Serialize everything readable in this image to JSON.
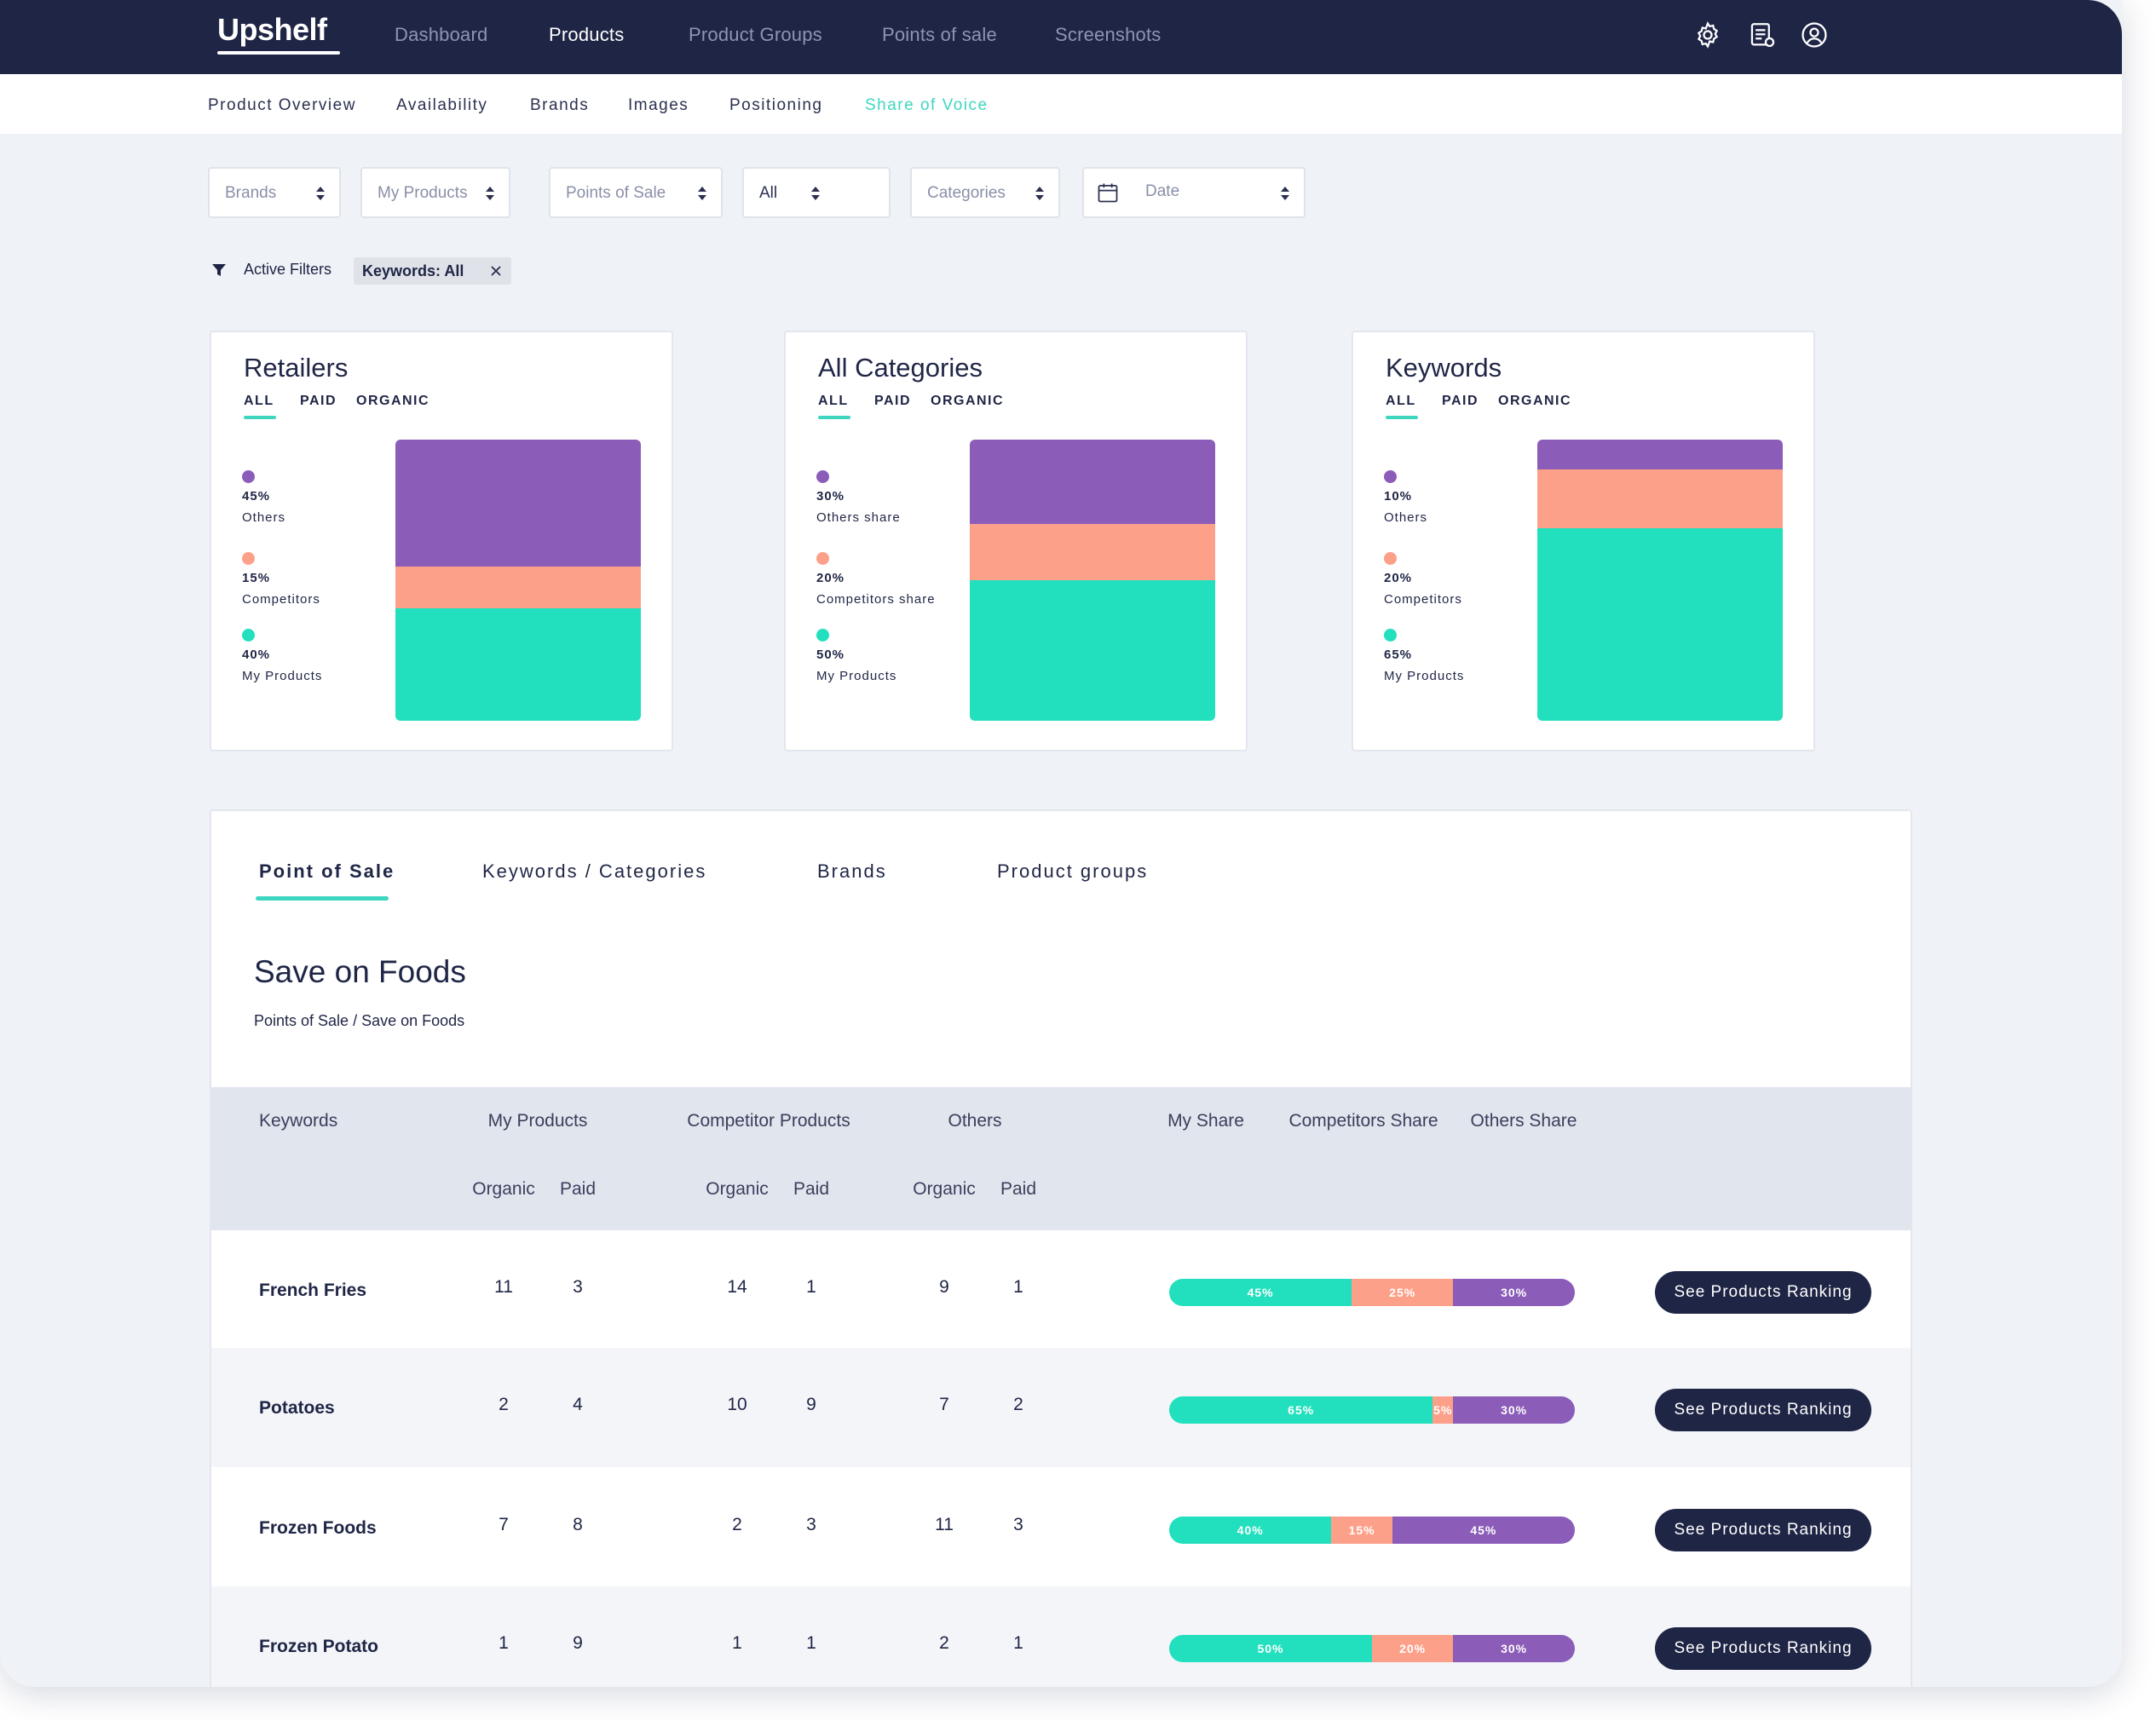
{
  "colors": {
    "navy": "#1f2545",
    "accent": "#3fd6c0",
    "others": "#8b5cb8",
    "competitors": "#fda08a",
    "my_products": "#22e0bd"
  },
  "topnav": {
    "logo": "Upshelf",
    "items": [
      "Dashboard",
      "Products",
      "Product Groups",
      "Points of sale",
      "Screenshots"
    ],
    "active": "Products",
    "icons": [
      "settings-icon",
      "report-icon",
      "account-icon"
    ]
  },
  "subnav": {
    "items": [
      "Product Overview",
      "Availability",
      "Brands",
      "Images",
      "Positioning",
      "Share of Voice"
    ],
    "active": "Share of Voice"
  },
  "filters": {
    "brands": "Brands",
    "my_products": "My Products",
    "points_of_sale": "Points of Sale",
    "all": "All",
    "categories": "Categories",
    "date": "Date"
  },
  "active_filters": {
    "label": "Active Filters",
    "chip": "Keywords: All"
  },
  "cards": [
    {
      "title": "Retailers",
      "tabs": [
        "ALL",
        "PAID",
        "ORGANIC"
      ],
      "legend": [
        {
          "value": "45%",
          "name": "Others",
          "pct": 45
        },
        {
          "value": "15%",
          "name": "Competitors",
          "pct": 15
        },
        {
          "value": "40%",
          "name": "My Products",
          "pct": 40
        }
      ]
    },
    {
      "title": "All Categories",
      "tabs": [
        "ALL",
        "PAID",
        "ORGANIC"
      ],
      "legend": [
        {
          "value": "30%",
          "name": "Others share",
          "pct": 30
        },
        {
          "value": "20%",
          "name": "Competitors share",
          "pct": 20
        },
        {
          "value": "50%",
          "name": "My Products",
          "pct": 50
        }
      ]
    },
    {
      "title": "Keywords",
      "tabs": [
        "ALL",
        "PAID",
        "ORGANIC"
      ],
      "legend": [
        {
          "value": "10%",
          "name": "Others",
          "pct": 10
        },
        {
          "value": "20%",
          "name": "Competitors",
          "pct": 20
        },
        {
          "value": "65%",
          "name": "My Products",
          "pct": 65
        }
      ]
    }
  ],
  "panel": {
    "tabs": [
      "Point of Sale",
      "Keywords / Categories",
      "Brands",
      "Product groups"
    ],
    "active_tab": "Point of Sale",
    "title": "Save on Foods",
    "breadcrumb": "Points of Sale / Save on Foods",
    "headers": {
      "keywords": "Keywords",
      "my_products": "My Products",
      "competitor_products": "Competitor Products",
      "others": "Others",
      "my_share": "My Share",
      "competitors_share": "Competitors Share",
      "others_share": "Others Share",
      "organic": "Organic",
      "paid": "Paid"
    },
    "button_label": "See Products Ranking",
    "rows": [
      {
        "keyword": "French Fries",
        "my_organic": "11",
        "my_paid": "3",
        "comp_organic": "14",
        "comp_paid": "1",
        "oth_organic": "9",
        "oth_paid": "1",
        "share": [
          {
            "label": "45%",
            "pct": 45
          },
          {
            "label": "25%",
            "pct": 25
          },
          {
            "label": "30%",
            "pct": 30
          }
        ]
      },
      {
        "keyword": "Potatoes",
        "my_organic": "2",
        "my_paid": "4",
        "comp_organic": "10",
        "comp_paid": "9",
        "oth_organic": "7",
        "oth_paid": "2",
        "share": [
          {
            "label": "65%",
            "pct": 65
          },
          {
            "label": "5%",
            "pct": 5
          },
          {
            "label": "30%",
            "pct": 30
          }
        ]
      },
      {
        "keyword": "Frozen Foods",
        "my_organic": "7",
        "my_paid": "8",
        "comp_organic": "2",
        "comp_paid": "3",
        "oth_organic": "11",
        "oth_paid": "3",
        "share": [
          {
            "label": "40%",
            "pct": 40
          },
          {
            "label": "15%",
            "pct": 15
          },
          {
            "label": "45%",
            "pct": 45
          }
        ]
      },
      {
        "keyword": "Frozen Potato",
        "my_organic": "1",
        "my_paid": "9",
        "comp_organic": "1",
        "comp_paid": "1",
        "oth_organic": "2",
        "oth_paid": "1",
        "share": [
          {
            "label": "50%",
            "pct": 50
          },
          {
            "label": "20%",
            "pct": 20
          },
          {
            "label": "30%",
            "pct": 30
          }
        ]
      }
    ]
  }
}
